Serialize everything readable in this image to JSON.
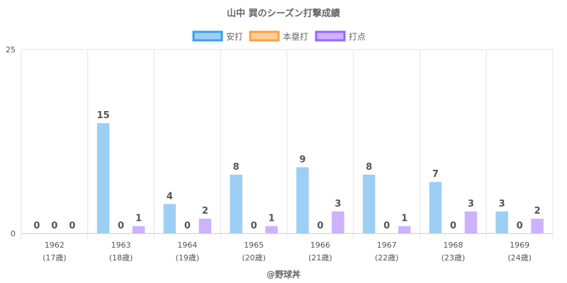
{
  "chart_data": {
    "type": "bar",
    "title": "山中 巽のシーズン打撃成績",
    "categories": [
      "1962",
      "1963",
      "1964",
      "1965",
      "1966",
      "1967",
      "1968",
      "1969"
    ],
    "category_sublabels": [
      "(17歳)",
      "(18歳)",
      "(19歳)",
      "(20歳)",
      "(21歳)",
      "(22歳)",
      "(23歳)",
      "(24歳)"
    ],
    "series": [
      {
        "name": "安打",
        "values": [
          0,
          15,
          4,
          8,
          9,
          8,
          7,
          3
        ],
        "fill": "#9dcff5",
        "stroke": "#36a2eb"
      },
      {
        "name": "本塁打",
        "values": [
          0,
          0,
          0,
          0,
          0,
          0,
          0,
          0
        ],
        "fill": "#ffcf9f",
        "stroke": "#ff9f40"
      },
      {
        "name": "打点",
        "values": [
          0,
          1,
          2,
          1,
          3,
          1,
          3,
          2
        ],
        "fill": "#ccb2ff",
        "stroke": "#9966ff"
      }
    ],
    "ylim": [
      0,
      25
    ],
    "yticks": [
      0,
      25
    ],
    "legend_position": "top",
    "grid": true
  },
  "credit": "@野球丼"
}
